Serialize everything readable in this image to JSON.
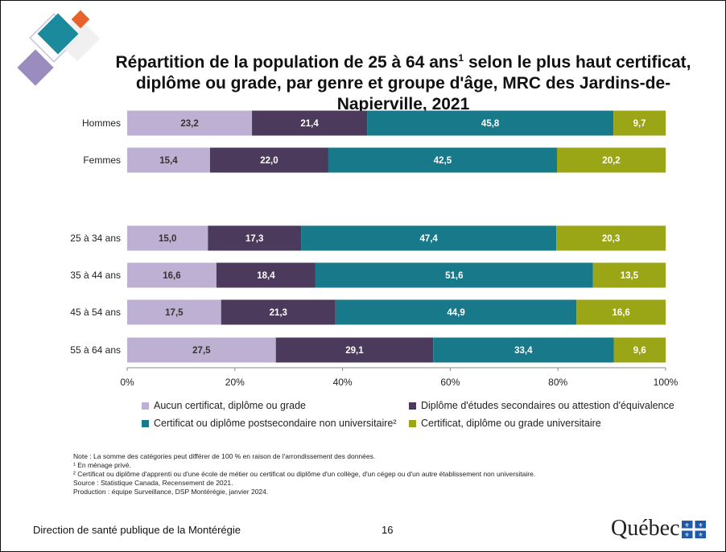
{
  "title": {
    "line1": "Répartition de la population de 25 à 64 ans",
    "line1_sup": "1",
    "line1_rest": " selon le plus haut certificat,",
    "line2": "diplôme ou grade, par genre et groupe d'âge, MRC des Jardins-de-Napierville, 2021"
  },
  "chart_data": {
    "type": "bar",
    "orientation": "horizontal",
    "stacked": "percent",
    "categories": [
      "Hommes",
      "Femmes",
      "25 à 34 ans",
      "35 à 44 ans",
      "45 à 54 ans",
      "55 à 64 ans"
    ],
    "series": [
      {
        "name": "Aucun certificat, diplôme ou grade",
        "color": "#bdb0d2",
        "values": [
          23.2,
          15.4,
          15.0,
          16.6,
          17.5,
          27.5
        ],
        "labels": [
          "23,2",
          "15,4",
          "15,0",
          "16,6",
          "17,5",
          "27,5"
        ]
      },
      {
        "name": "Diplôme d'études secondaires ou attestion d'équivalence",
        "color": "#4b3a5c",
        "values": [
          21.4,
          22.0,
          17.3,
          18.4,
          21.3,
          29.1
        ],
        "labels": [
          "21,4",
          "22,0",
          "17,3",
          "18,4",
          "21,3",
          "29,1"
        ]
      },
      {
        "name": "Certificat ou diplôme postsecondaire non universitaire²",
        "color": "#17798a",
        "values": [
          45.8,
          42.5,
          47.4,
          51.6,
          44.9,
          33.4
        ],
        "labels": [
          "45,8",
          "42,5",
          "47,4",
          "51,6",
          "44,9",
          "33,4"
        ]
      },
      {
        "name": "Certificat, diplôme ou grade universitaire",
        "color": "#9aa616",
        "values": [
          9.7,
          20.2,
          20.3,
          13.5,
          16.6,
          9.6
        ],
        "labels": [
          "9,7",
          "20,2",
          "20,3",
          "13,5",
          "16,6",
          "9,6"
        ]
      }
    ],
    "x_ticks": [
      "0%",
      "20%",
      "40%",
      "60%",
      "80%",
      "100%"
    ],
    "xlim": [
      0,
      100
    ],
    "legend_position": "bottom",
    "grid": false
  },
  "notes": [
    "Note : La somme des catégories peut différer de 100 % en raison de l'arrondissement des données.",
    "¹ En ménage privé.",
    "² Certificat ou diplôme d'apprenti ou d'une école de métier ou certificat ou diplôme d'un collège, d'un cégep ou d'un autre établissement non universitaire.",
    "Source : Statistique Canada, Recensement de 2021.",
    "Production : équipe Surveillance, DSP Montérégie, janvier 2024."
  ],
  "footer": {
    "organization": "Direction de santé publique de la Montérégie",
    "page": "16",
    "logo_text": "Québec"
  }
}
